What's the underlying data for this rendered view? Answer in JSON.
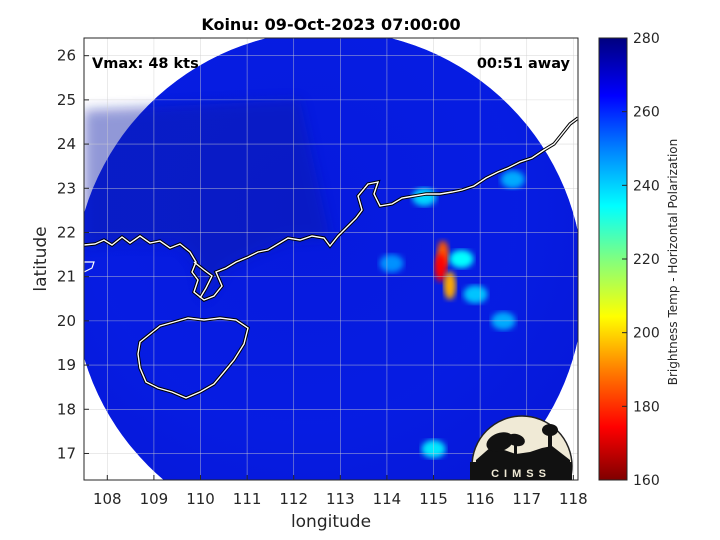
{
  "chart_data": {
    "type": "heatmap",
    "title": "Koinu: 09-Oct-2023 07:00:00",
    "xlabel": "longitude",
    "ylabel": "latitude",
    "xlim": [
      107.5,
      118.1
    ],
    "ylim": [
      16.4,
      26.4
    ],
    "xticks": [
      "108",
      "109",
      "110",
      "111",
      "112",
      "113",
      "114",
      "115",
      "116",
      "117",
      "118"
    ],
    "yticks": [
      "17",
      "18",
      "19",
      "20",
      "21",
      "22",
      "23",
      "24",
      "25",
      "26"
    ],
    "grid": true,
    "annotations": {
      "vmax": "Vmax: 48 kts",
      "time_away": "00:51 away"
    },
    "colorbar": {
      "label": "Brightness Temp - Horizontal Polarization",
      "min": 160,
      "max": 280,
      "ticks": [
        "160",
        "180",
        "200",
        "220",
        "240",
        "260",
        "280"
      ],
      "colors": [
        "#7f0000",
        "#ff0000",
        "#ff8000",
        "#ffff00",
        "#80ff80",
        "#00ffff",
        "#0080ff",
        "#0000ff",
        "#00007f"
      ]
    },
    "swath": {
      "center_lon": 112.75,
      "center_lat": 20.8,
      "background_temp": 268
    },
    "cold_features": [
      {
        "lon": 115.2,
        "lat": 21.5,
        "temp": 185
      },
      {
        "lon": 115.15,
        "lat": 21.2,
        "temp": 175
      },
      {
        "lon": 115.35,
        "lat": 20.8,
        "temp": 195
      },
      {
        "lon": 115.6,
        "lat": 21.4,
        "temp": 235
      },
      {
        "lon": 114.8,
        "lat": 22.8,
        "temp": 240
      },
      {
        "lon": 116.7,
        "lat": 23.2,
        "temp": 245
      },
      {
        "lon": 114.1,
        "lat": 21.3,
        "temp": 248
      },
      {
        "lon": 115.9,
        "lat": 20.6,
        "temp": 242
      },
      {
        "lon": 116.5,
        "lat": 20.0,
        "temp": 245
      },
      {
        "lon": 115.0,
        "lat": 17.1,
        "temp": 238
      }
    ],
    "logo_text": "CIMSS"
  }
}
